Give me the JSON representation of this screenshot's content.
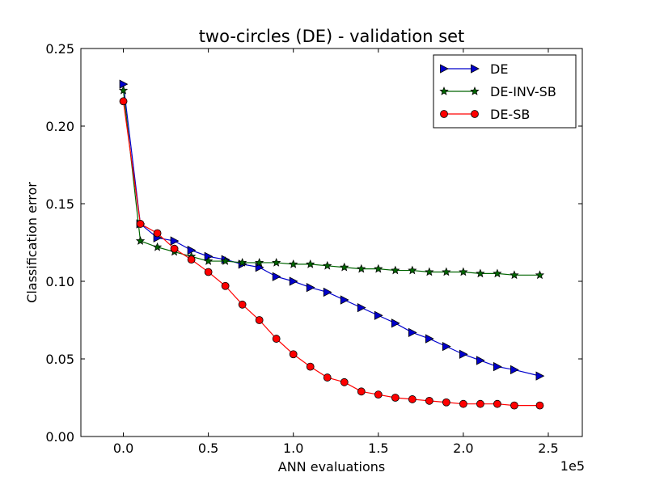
{
  "chart_data": {
    "type": "line",
    "title": "two-circles (DE) - validation set",
    "xlabel": "ANN evaluations",
    "ylabel": "Classification error",
    "x_offset_label": "1e5",
    "xlim": [
      -0.25,
      2.7
    ],
    "ylim": [
      0.0,
      0.25
    ],
    "xticks": [
      0.0,
      0.5,
      1.0,
      1.5,
      2.0,
      2.5
    ],
    "xtick_labels": [
      "0.0",
      "0.5",
      "1.0",
      "1.5",
      "2.0",
      "2.5"
    ],
    "yticks": [
      0.0,
      0.05,
      0.1,
      0.15,
      0.2,
      0.25
    ],
    "ytick_labels": [
      "0.00",
      "0.05",
      "0.10",
      "0.15",
      "0.20",
      "0.25"
    ],
    "grid": false,
    "legend_position": "top-right",
    "x": [
      0.0,
      0.1,
      0.2,
      0.3,
      0.4,
      0.5,
      0.6,
      0.7,
      0.8,
      0.9,
      1.0,
      1.1,
      1.2,
      1.3,
      1.4,
      1.5,
      1.6,
      1.7,
      1.8,
      1.9,
      2.0,
      2.1,
      2.2,
      2.3,
      2.45
    ],
    "series": [
      {
        "name": "DE",
        "color": "#0000cc",
        "marker": "triangle-right",
        "values": [
          0.227,
          0.137,
          0.128,
          0.126,
          0.12,
          0.116,
          0.114,
          0.111,
          0.109,
          0.103,
          0.1,
          0.096,
          0.093,
          0.088,
          0.083,
          0.078,
          0.073,
          0.067,
          0.063,
          0.058,
          0.053,
          0.049,
          0.045,
          0.043,
          0.039
        ]
      },
      {
        "name": "DE-INV-SB",
        "color": "#006400",
        "marker": "star",
        "values": [
          0.223,
          0.126,
          0.122,
          0.119,
          0.116,
          0.113,
          0.113,
          0.112,
          0.112,
          0.112,
          0.111,
          0.111,
          0.11,
          0.109,
          0.108,
          0.108,
          0.107,
          0.107,
          0.106,
          0.106,
          0.106,
          0.105,
          0.105,
          0.104,
          0.104
        ]
      },
      {
        "name": "DE-SB",
        "color": "#ff0000",
        "marker": "circle",
        "values": [
          0.216,
          0.137,
          0.131,
          0.121,
          0.114,
          0.106,
          0.097,
          0.085,
          0.075,
          0.063,
          0.053,
          0.045,
          0.038,
          0.035,
          0.029,
          0.027,
          0.025,
          0.024,
          0.023,
          0.022,
          0.021,
          0.021,
          0.021,
          0.02,
          0.02
        ]
      }
    ]
  }
}
